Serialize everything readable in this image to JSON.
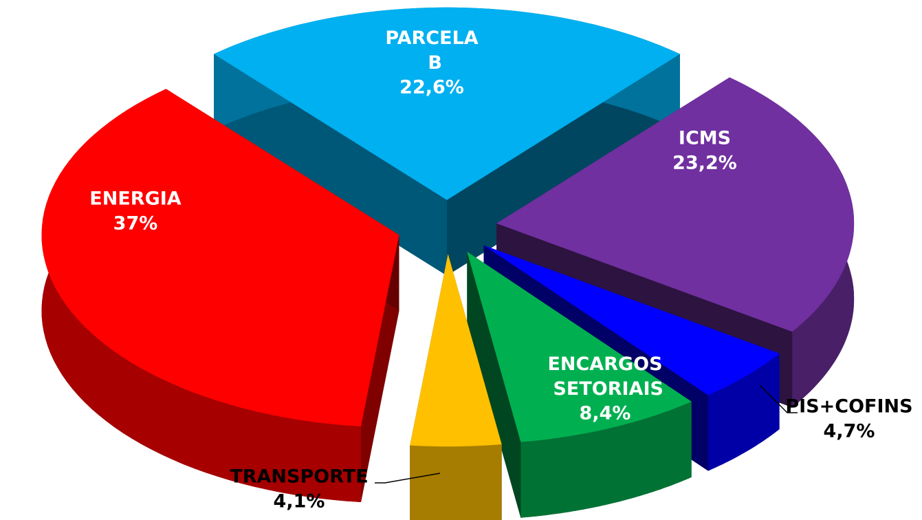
{
  "chart_data": {
    "type": "pie",
    "categories": [
      "PARCELA B",
      "ICMS",
      "PIS+COFINS",
      "ENCARGOS SETORIAIS",
      "TRANSPORTE",
      "ENERGIA"
    ],
    "values": [
      22.6,
      23.2,
      4.7,
      8.4,
      4.1,
      37
    ],
    "value_labels": [
      "22,6%",
      "23,2%",
      "4,7%",
      "8,4%",
      "4,1%",
      "37%"
    ],
    "colors": [
      "#00b0f0",
      "#7030a0",
      "#0000ff",
      "#00b050",
      "#ffc000",
      "#ff0000"
    ]
  }
}
